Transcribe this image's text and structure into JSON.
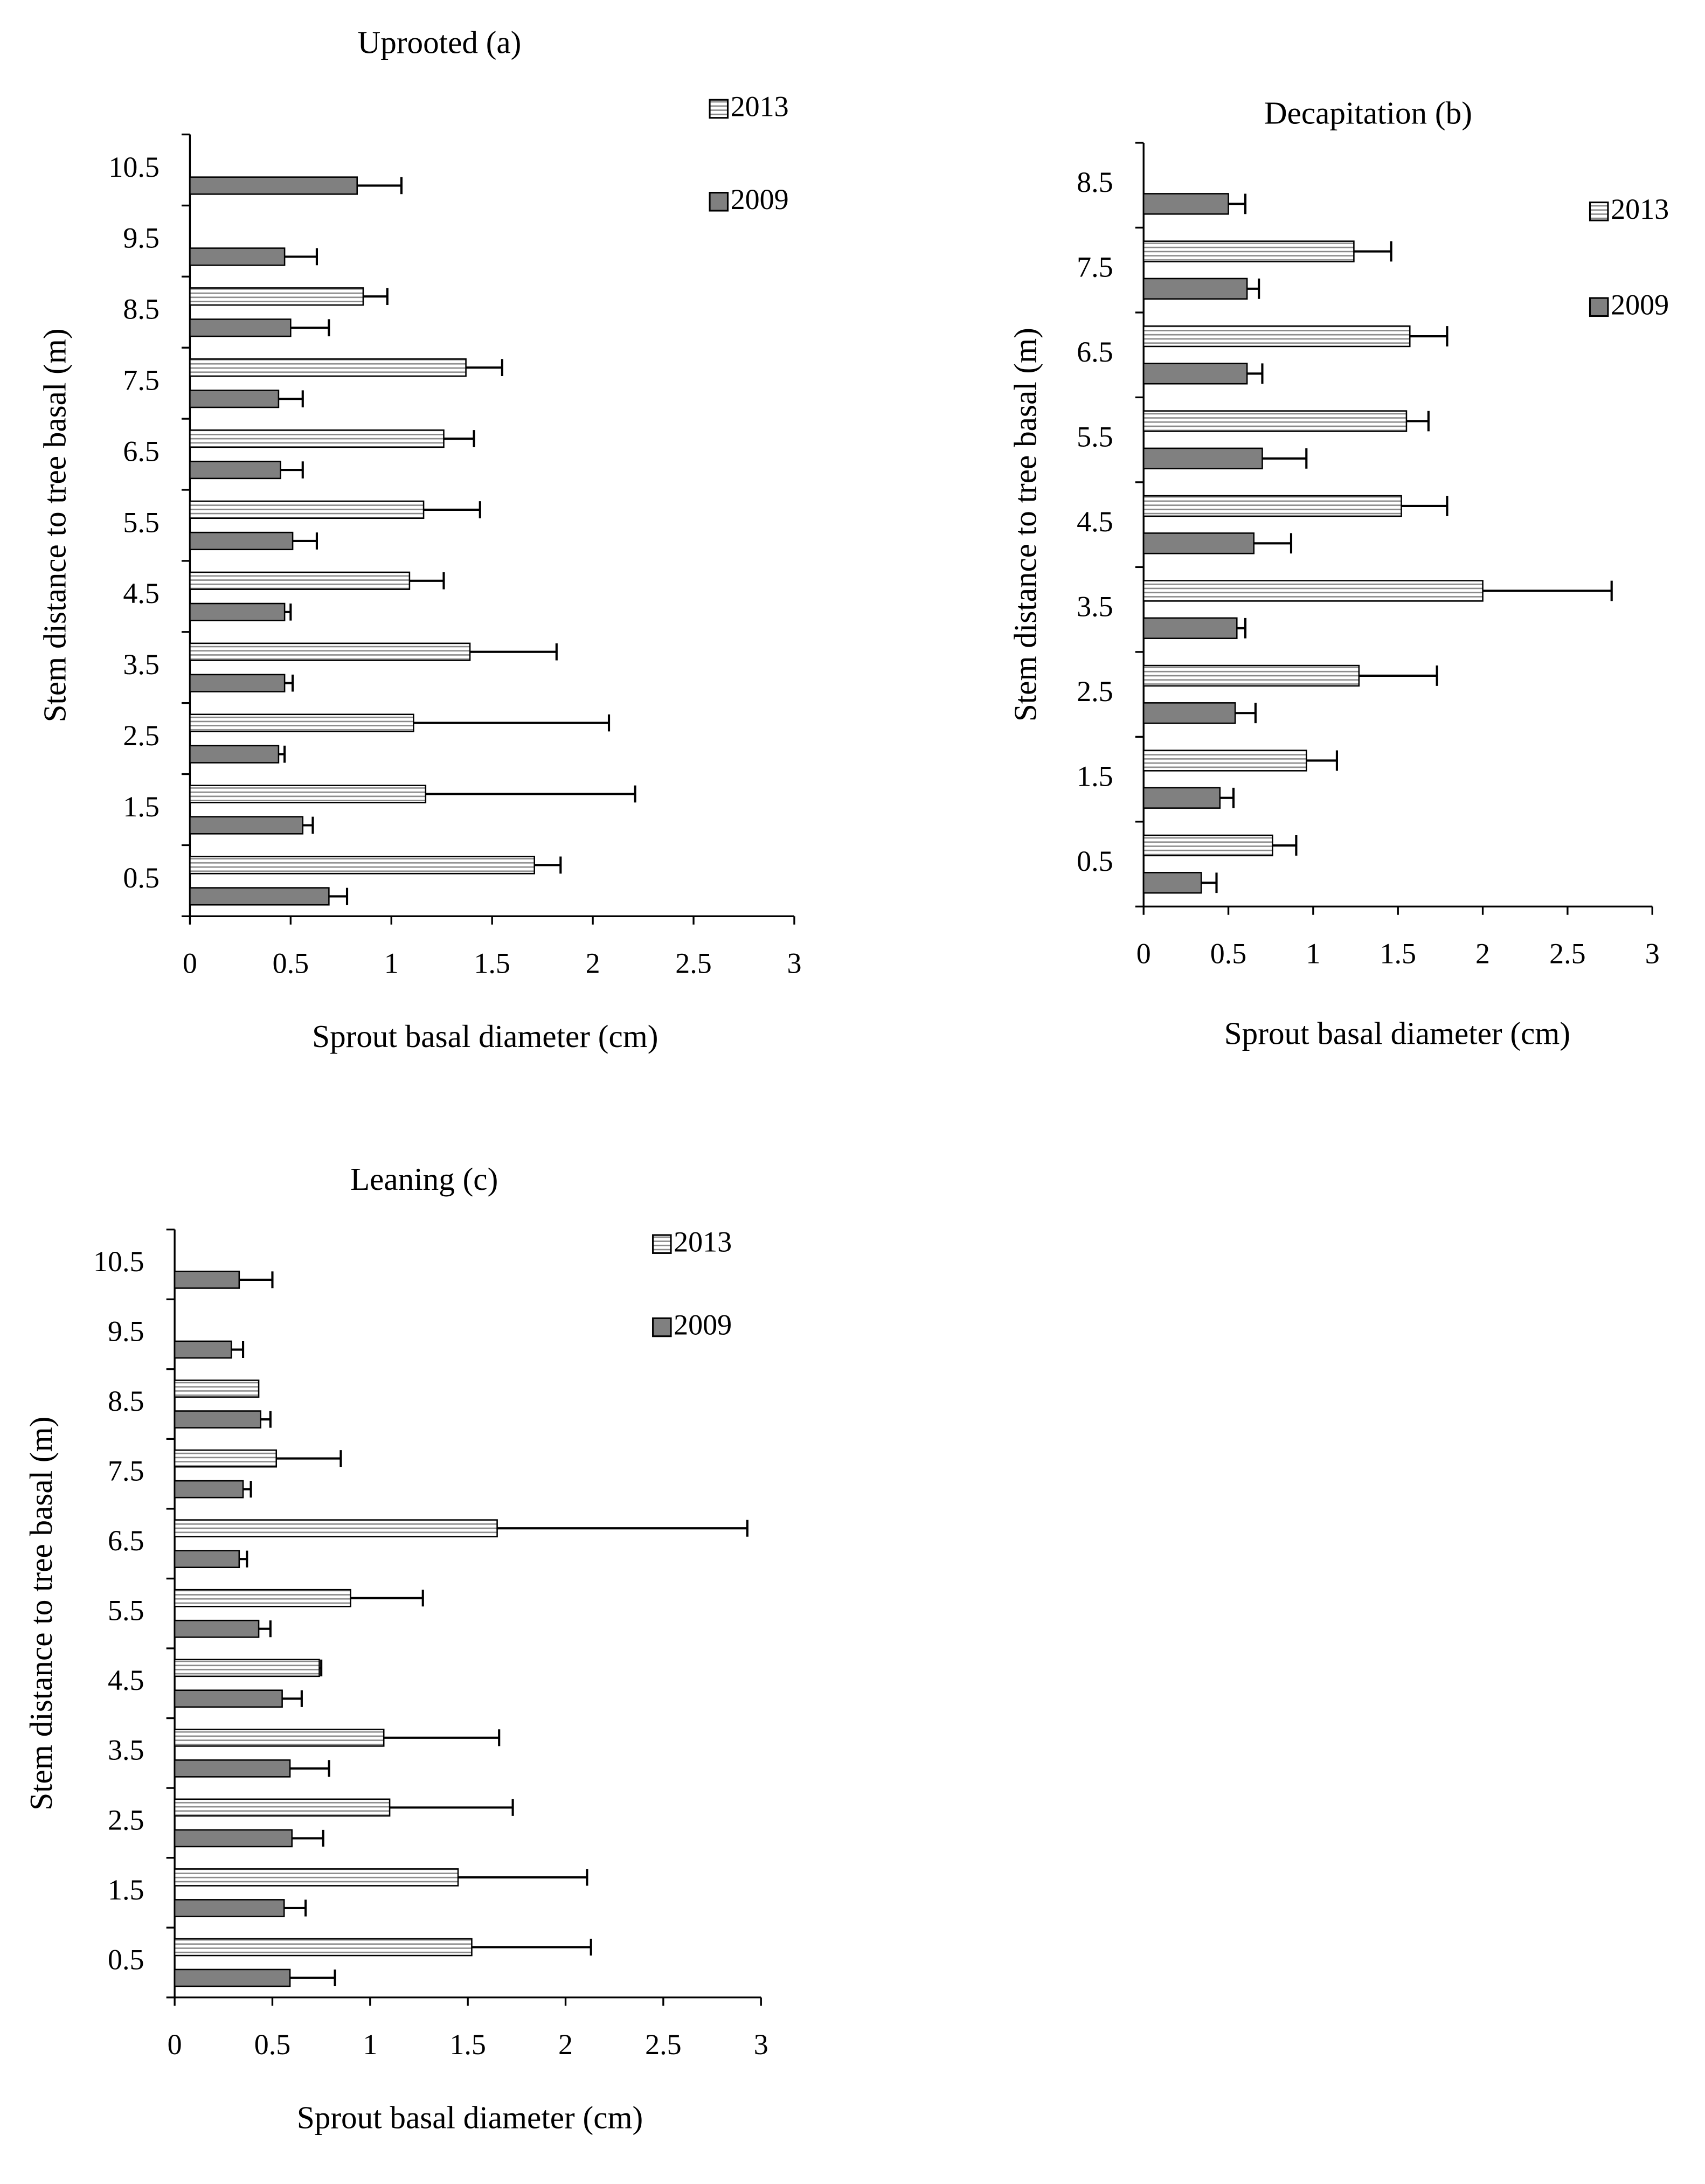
{
  "chart_data": [
    {
      "type": "bar",
      "orientation": "horizontal",
      "title": "Uprooted (a)",
      "xlabel": "Sprout basal diameter (cm)",
      "ylabel": "Stem distance to tree basal (m)",
      "categories": [
        "0.5",
        "1.5",
        "2.5",
        "3.5",
        "4.5",
        "5.5",
        "6.5",
        "7.5",
        "8.5",
        "9.5",
        "10.5"
      ],
      "series": [
        {
          "name": "2013",
          "color": "#ffffff",
          "hatch": "horizontal",
          "values": [
            1.71,
            1.17,
            1.11,
            1.39,
            1.09,
            1.16,
            1.26,
            1.37,
            0.86,
            null,
            null
          ],
          "errors": [
            0.13,
            1.04,
            0.97,
            0.43,
            0.17,
            0.28,
            0.15,
            0.18,
            0.12,
            null,
            null
          ]
        },
        {
          "name": "2009",
          "color": "#808080",
          "values": [
            0.69,
            0.56,
            0.44,
            0.47,
            0.47,
            0.51,
            0.45,
            0.44,
            0.5,
            0.47,
            0.83
          ],
          "errors": [
            0.09,
            0.05,
            0.03,
            0.04,
            0.03,
            0.12,
            0.11,
            0.12,
            0.19,
            0.16,
            0.22
          ]
        }
      ],
      "xlim": [
        0,
        3
      ],
      "xticks": [
        0,
        0.5,
        1,
        1.5,
        2,
        2.5,
        3
      ],
      "legend": "upper right"
    },
    {
      "type": "bar",
      "orientation": "horizontal",
      "title": "Decapitation (b)",
      "xlabel": "Sprout basal diameter (cm)",
      "ylabel": "Stem distance to tree basal (m)",
      "categories": [
        "0.5",
        "1.5",
        "2.5",
        "3.5",
        "4.5",
        "5.5",
        "6.5",
        "7.5",
        "8.5"
      ],
      "series": [
        {
          "name": "2013",
          "color": "#ffffff",
          "hatch": "horizontal",
          "values": [
            0.76,
            0.96,
            1.27,
            2.0,
            1.52,
            1.55,
            1.57,
            1.24,
            null
          ],
          "errors": [
            0.14,
            0.18,
            0.46,
            0.76,
            0.27,
            0.13,
            0.22,
            0.22,
            null
          ]
        },
        {
          "name": "2009",
          "color": "#808080",
          "values": [
            0.34,
            0.45,
            0.54,
            0.55,
            0.65,
            0.7,
            0.61,
            0.61,
            0.5
          ],
          "errors": [
            0.09,
            0.08,
            0.12,
            0.05,
            0.22,
            0.26,
            0.09,
            0.07,
            0.1
          ]
        }
      ],
      "xlim": [
        0,
        3
      ],
      "xticks": [
        0,
        0.5,
        1,
        1.5,
        2,
        2.5,
        3
      ],
      "legend": "upper right"
    },
    {
      "type": "bar",
      "orientation": "horizontal",
      "title": "Leaning (c)",
      "xlabel": "Sprout basal diameter (cm)",
      "ylabel": "Stem distance to tree basal (m)",
      "categories": [
        "0.5",
        "1.5",
        "2.5",
        "3.5",
        "4.5",
        "5.5",
        "6.5",
        "7.5",
        "8.5",
        "9.5",
        "10.5"
      ],
      "series": [
        {
          "name": "2013",
          "color": "#ffffff",
          "hatch": "horizontal",
          "values": [
            1.52,
            1.45,
            1.1,
            1.07,
            0.74,
            0.9,
            1.65,
            0.52,
            0.43,
            null,
            null
          ],
          "errors": [
            0.61,
            0.66,
            0.63,
            0.59,
            0.01,
            0.37,
            1.28,
            0.33,
            null,
            null,
            null
          ]
        },
        {
          "name": "2009",
          "color": "#808080",
          "values": [
            0.59,
            0.56,
            0.6,
            0.59,
            0.55,
            0.43,
            0.33,
            0.35,
            0.44,
            0.29,
            0.33
          ],
          "errors": [
            0.23,
            0.11,
            0.16,
            0.2,
            0.1,
            0.06,
            0.04,
            0.04,
            0.05,
            0.06,
            0.17
          ]
        }
      ],
      "xlim": [
        0,
        3
      ],
      "xticks": [
        0,
        0.5,
        1,
        1.5,
        2,
        2.5,
        3
      ],
      "legend": "upper right"
    }
  ]
}
